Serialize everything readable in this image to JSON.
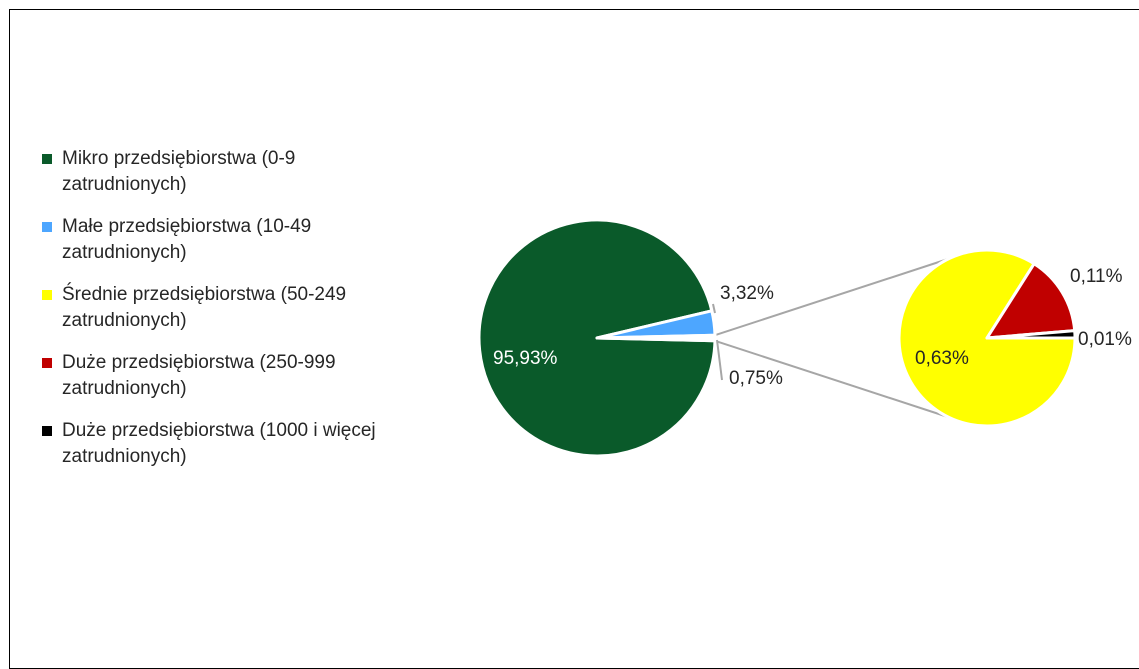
{
  "chart_data": {
    "type": "pie",
    "subtype": "pie-of-pie",
    "categories": [
      "Mikro przedsiębiorstwa (0-9 zatrudnionych)",
      "Małe przedsiębiorstwa (10-49 zatrudnionych)",
      " Średnie przedsiębiorstwa (50-249 zatrudnionych)",
      "Duże przedsiębiorstwa (250-999 zatrudnionych)",
      "Duże przedsiębiorstwa (1000 i więcej zatrudnionych)"
    ],
    "values": [
      95.93,
      3.32,
      0.63,
      0.11,
      0.01
    ],
    "labels": [
      "95,93%",
      "3,32%",
      "0,63%",
      "0,11%",
      "0,01%"
    ],
    "colors": [
      "#0a5a2a",
      "#4da6ff",
      "#ffff00",
      "#c00000",
      "#000000"
    ],
    "main_pie": {
      "indices": [
        0,
        1
      ],
      "other_label": "0,75%",
      "other_value": 0.75
    },
    "secondary_pie": {
      "indices": [
        2,
        3,
        4
      ]
    },
    "legend_position": "left"
  }
}
